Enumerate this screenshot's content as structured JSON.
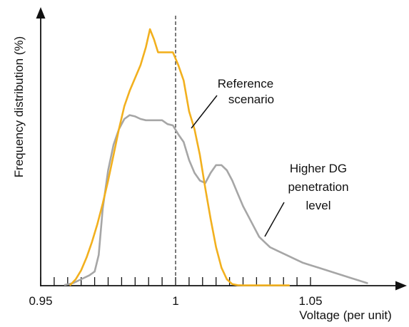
{
  "chart_data": {
    "type": "line",
    "title": "",
    "xlabel": "Voltage (per unit)",
    "ylabel": "Frequency distribution (%)",
    "xlim": [
      0.95,
      1.075
    ],
    "ylim": [
      0,
      100
    ],
    "x_ticks": [
      0.95,
      0.955,
      0.96,
      0.965,
      0.97,
      0.975,
      0.98,
      0.985,
      0.99,
      0.995,
      1.0,
      1.005,
      1.01,
      1.015,
      1.02,
      1.025,
      1.03,
      1.035,
      1.04,
      1.045,
      1.05
    ],
    "x_tick_labels": [
      {
        "value": 0.95,
        "label": "0.95"
      },
      {
        "value": 1.0,
        "label": "1"
      },
      {
        "value": 1.05,
        "label": "1.05"
      }
    ],
    "grid": false,
    "reference_line": {
      "x": 1.0,
      "style": "dashed"
    },
    "series": [
      {
        "name": "Reference scenario",
        "color": "#f2b01e",
        "x": [
          0.961,
          0.963,
          0.965,
          0.967,
          0.969,
          0.971,
          0.973,
          0.975,
          0.977,
          0.979,
          0.981,
          0.983,
          0.985,
          0.987,
          0.989,
          0.9905,
          0.992,
          0.9935,
          0.995,
          0.997,
          0.999,
          1.001,
          1.003,
          1.005,
          1.007,
          1.009,
          1.011,
          1.013,
          1.015,
          1.017,
          1.019,
          1.021,
          1.023,
          1.025,
          1.03,
          1.035,
          1.04,
          1.042
        ],
        "y": [
          0.3,
          2.5,
          6.0,
          11.0,
          17.0,
          24.0,
          32.0,
          41.0,
          51.0,
          61.0,
          70.0,
          76.0,
          81.0,
          86.0,
          93.0,
          100.0,
          96.0,
          91.0,
          91.0,
          91.0,
          91.0,
          86.0,
          80.0,
          68.0,
          61.0,
          51.0,
          38.0,
          26.0,
          15.0,
          7.0,
          2.5,
          0.6,
          0.2,
          0.1,
          0.1,
          0.1,
          0.1,
          0.1
        ]
      },
      {
        "name": "Higher DG penetration level",
        "color": "#a6a6a6",
        "x": [
          0.959,
          0.962,
          0.965,
          0.968,
          0.97,
          0.9715,
          0.973,
          0.975,
          0.977,
          0.979,
          0.981,
          0.983,
          0.985,
          0.987,
          0.989,
          0.991,
          0.993,
          0.995,
          0.997,
          0.999,
          1.001,
          1.003,
          1.005,
          1.007,
          1.009,
          1.011,
          1.013,
          1.015,
          1.017,
          1.019,
          1.021,
          1.023,
          1.025,
          1.027,
          1.029,
          1.031,
          1.033,
          1.035,
          1.038,
          1.041,
          1.044,
          1.047,
          1.05,
          1.053,
          1.056,
          1.059,
          1.062,
          1.065,
          1.068,
          1.071
        ],
        "y": [
          0.3,
          1.0,
          2.5,
          4.0,
          5.5,
          12.0,
          30.0,
          45.0,
          55.0,
          61.0,
          65.0,
          66.5,
          66.0,
          65.0,
          64.5,
          64.5,
          64.5,
          64.5,
          63.0,
          62.5,
          59.0,
          56.0,
          49.0,
          44.0,
          41.0,
          40.0,
          44.0,
          47.0,
          47.0,
          45.0,
          41.0,
          36.0,
          31.0,
          27.0,
          23.0,
          19.0,
          17.0,
          15.0,
          13.5,
          12.0,
          10.5,
          9.0,
          8.0,
          7.0,
          6.0,
          5.0,
          4.0,
          3.0,
          2.0,
          1.0
        ]
      }
    ],
    "annotations": [
      {
        "lines": [
          "Reference",
          "scenario"
        ],
        "target_series": "Reference scenario"
      },
      {
        "lines": [
          "Higher DG",
          "penetration",
          "level"
        ],
        "target_series": "Higher DG penetration level"
      }
    ]
  }
}
